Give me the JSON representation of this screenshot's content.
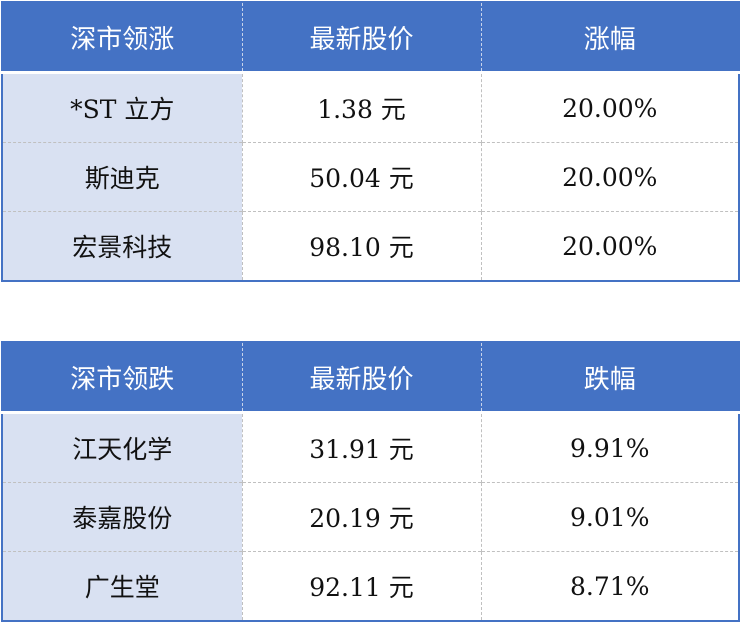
{
  "colors": {
    "header_bg": "#4472C4",
    "first_col_bg": "#D9E1F2"
  },
  "gainers": {
    "headers": [
      "深市领涨",
      "最新股价",
      "涨幅"
    ],
    "rows": [
      [
        "*ST 立方",
        "1.38 元",
        "20.00%"
      ],
      [
        "斯迪克",
        "50.04 元",
        "20.00%"
      ],
      [
        "宏景科技",
        "98.10 元",
        "20.00%"
      ]
    ]
  },
  "losers": {
    "headers": [
      "深市领跌",
      "最新股价",
      "跌幅"
    ],
    "rows": [
      [
        "江天化学",
        "31.91 元",
        "9.91%"
      ],
      [
        "泰嘉股份",
        "20.19 元",
        "9.01%"
      ],
      [
        "广生堂",
        "92.11 元",
        "8.71%"
      ]
    ]
  }
}
